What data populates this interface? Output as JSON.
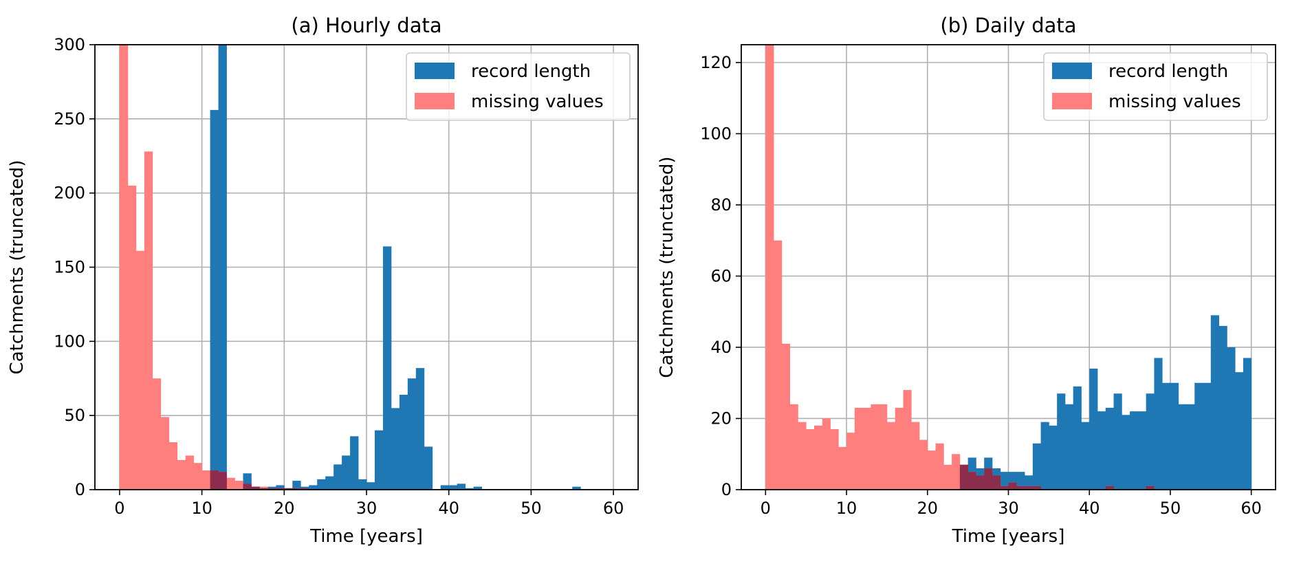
{
  "chart_data": [
    {
      "type": "bar",
      "title": "(a) Hourly data",
      "xlabel": "Time [years]",
      "ylabel": "Catchments (truncated)",
      "xlim": [
        -3,
        63
      ],
      "ylim": [
        0,
        300
      ],
      "xticks": [
        "0",
        "10",
        "20",
        "30",
        "40",
        "50",
        "60"
      ],
      "yticks": [
        "0",
        "50",
        "100",
        "150",
        "200",
        "250",
        "300"
      ],
      "grid": true,
      "legend_position": "top-right",
      "bin_width": 1,
      "x_start": 0,
      "series": [
        {
          "name": "record length",
          "color": "#1f77b4",
          "values": [
            0,
            0,
            0,
            0,
            0,
            0,
            0,
            0,
            0,
            0,
            0,
            256,
            300,
            0,
            0,
            11,
            2,
            1,
            2,
            3,
            1,
            6,
            2,
            3,
            7,
            9,
            17,
            23,
            36,
            7,
            5,
            40,
            164,
            55,
            64,
            75,
            82,
            29,
            0,
            3,
            3,
            4,
            1,
            2,
            0,
            0,
            0,
            0,
            0,
            0,
            0,
            0,
            0,
            0,
            0,
            2,
            0,
            0,
            0,
            0
          ]
        },
        {
          "name": "missing values",
          "color": "#ff7f7f",
          "values": [
            300,
            205,
            161,
            228,
            75,
            49,
            32,
            20,
            23,
            18,
            13,
            13,
            12,
            8,
            6,
            4,
            2,
            2,
            1,
            1,
            1,
            1,
            1,
            0,
            0,
            0,
            0,
            0,
            0,
            0,
            0,
            0,
            0,
            0,
            0,
            0,
            0,
            0,
            0,
            0,
            0,
            0,
            0,
            0,
            0,
            0,
            0,
            0,
            0,
            0,
            0,
            0,
            0,
            0,
            0,
            0,
            0,
            0,
            0,
            0
          ]
        }
      ]
    },
    {
      "type": "bar",
      "title": "(b) Daily data",
      "xlabel": "Time [years]",
      "ylabel": "Catchments (trunctated)",
      "xlim": [
        -3,
        63
      ],
      "ylim": [
        0,
        125
      ],
      "xticks": [
        "0",
        "10",
        "20",
        "30",
        "40",
        "50",
        "60"
      ],
      "yticks": [
        "0",
        "20",
        "40",
        "60",
        "80",
        "100",
        "120"
      ],
      "grid": true,
      "legend_position": "top-right",
      "bin_width": 1,
      "x_start": 0,
      "series": [
        {
          "name": "record length",
          "color": "#1f77b4",
          "values": [
            0,
            0,
            0,
            0,
            0,
            0,
            0,
            0,
            0,
            0,
            0,
            0,
            0,
            0,
            0,
            0,
            0,
            0,
            0,
            0,
            0,
            0,
            0,
            0,
            7,
            9,
            6,
            9,
            6,
            5,
            5,
            5,
            4,
            13,
            19,
            18,
            27,
            24,
            29,
            19,
            34,
            22,
            23,
            27,
            21,
            22,
            22,
            27,
            37,
            30,
            30,
            24,
            24,
            30,
            30,
            49,
            46,
            40,
            33,
            37
          ]
        },
        {
          "name": "missing values",
          "color": "#ff7f7f",
          "values": [
            125,
            70,
            41,
            24,
            19,
            17,
            18,
            20,
            17,
            12,
            16,
            23,
            23,
            24,
            24,
            19,
            23,
            28,
            19,
            14,
            11,
            13,
            7,
            10,
            7,
            5,
            4,
            6,
            4,
            1,
            2,
            1,
            1,
            1,
            0,
            0,
            0,
            0,
            0,
            0,
            0,
            0,
            1,
            0,
            0,
            0,
            0,
            1,
            0,
            0,
            0,
            0,
            0,
            0,
            0,
            0,
            0,
            0,
            0,
            0
          ]
        }
      ]
    }
  ]
}
